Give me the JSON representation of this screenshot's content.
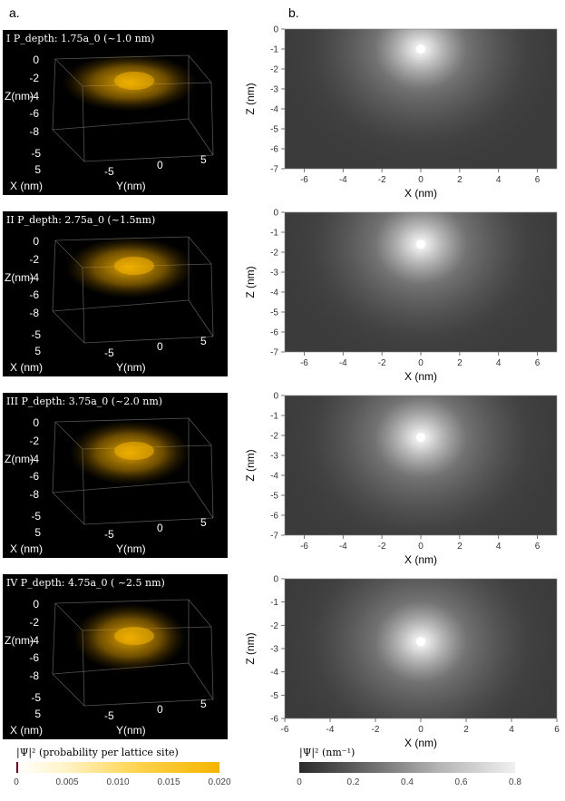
{
  "panel_a_label": "a.",
  "panel_b_label": "b.",
  "left_panels": [
    {
      "title": "I P_depth: 1.75a_0 (~1.0 nm)",
      "depth_nm": 1.0
    },
    {
      "title": "II P_depth: 2.75a_0 (~1.5nm)",
      "depth_nm": 1.5
    },
    {
      "title": "III P_depth: 3.75a_0 (~2.0 nm)",
      "depth_nm": 2.0
    },
    {
      "title": "IV P_depth: 4.75a_0 ( ~2.5 nm)",
      "depth_nm": 2.5
    }
  ],
  "left_axes": {
    "z_label": "Z(nm)",
    "x_label": "X (nm)",
    "y_label": "Y(nm)",
    "z_ticks": [
      "0",
      "-2",
      "-4",
      "-6",
      "-8"
    ],
    "x_ticks": [
      "-5",
      "0",
      "5"
    ],
    "y_ticks": [
      "-5",
      "0",
      "5"
    ]
  },
  "colors": {
    "panel_bg": "#000000",
    "gold": "#f5b400",
    "axis_gray": "#8a8a8a"
  },
  "chart_data": [
    {
      "type": "heatmap",
      "xlabel": "X (nm)",
      "ylabel": "Z (nm)",
      "xlim": [
        -7,
        7
      ],
      "ylim": [
        -7,
        0
      ],
      "peak": {
        "x": 0,
        "z": -1.0
      },
      "x_ticks": [
        "-6",
        "-4",
        "-2",
        "0",
        "2",
        "4",
        "6"
      ],
      "y_ticks": [
        "0",
        "-1",
        "-2",
        "-3",
        "-4",
        "-5",
        "-6",
        "-7"
      ]
    },
    {
      "type": "heatmap",
      "xlabel": "X (nm)",
      "ylabel": "Z (nm)",
      "xlim": [
        -7,
        7
      ],
      "ylim": [
        -7,
        0
      ],
      "peak": {
        "x": 0,
        "z": -1.6
      },
      "x_ticks": [
        "-6",
        "-4",
        "-2",
        "0",
        "2",
        "4",
        "6"
      ],
      "y_ticks": [
        "0",
        "-1",
        "-2",
        "-3",
        "-4",
        "-5",
        "-6",
        "-7"
      ]
    },
    {
      "type": "heatmap",
      "xlabel": "X (nm)",
      "ylabel": "Z (nm)",
      "xlim": [
        -7,
        7
      ],
      "ylim": [
        -7,
        0
      ],
      "peak": {
        "x": 0,
        "z": -2.1
      },
      "x_ticks": [
        "-6",
        "-4",
        "-2",
        "0",
        "2",
        "4",
        "6"
      ],
      "y_ticks": [
        "0",
        "-1",
        "-2",
        "-3",
        "-4",
        "-5",
        "-6",
        "-7"
      ]
    },
    {
      "type": "heatmap",
      "xlabel": "X (nm)",
      "ylabel": "Z (nm)",
      "xlim": [
        -6,
        6
      ],
      "ylim": [
        -6,
        0
      ],
      "peak": {
        "x": 0,
        "z": -2.7
      },
      "x_ticks": [
        "-6",
        "-4",
        "-2",
        "0",
        "2",
        "4",
        "6"
      ],
      "y_ticks": [
        "0",
        "-1",
        "-2",
        "-3",
        "-4",
        "-5",
        "-6"
      ]
    }
  ],
  "colorbar_a": {
    "label": "|Ψ|² (probability per lattice site)",
    "ticks": [
      "0",
      "0.005",
      "0.010",
      "0.015",
      "0.020"
    ],
    "range": [
      0,
      0.02
    ]
  },
  "colorbar_b": {
    "label": "|Ψ|² (nm⁻¹)",
    "ticks": [
      "0",
      "0.2",
      "0.4",
      "0.6",
      "0.8"
    ],
    "range": [
      0,
      0.8
    ]
  }
}
